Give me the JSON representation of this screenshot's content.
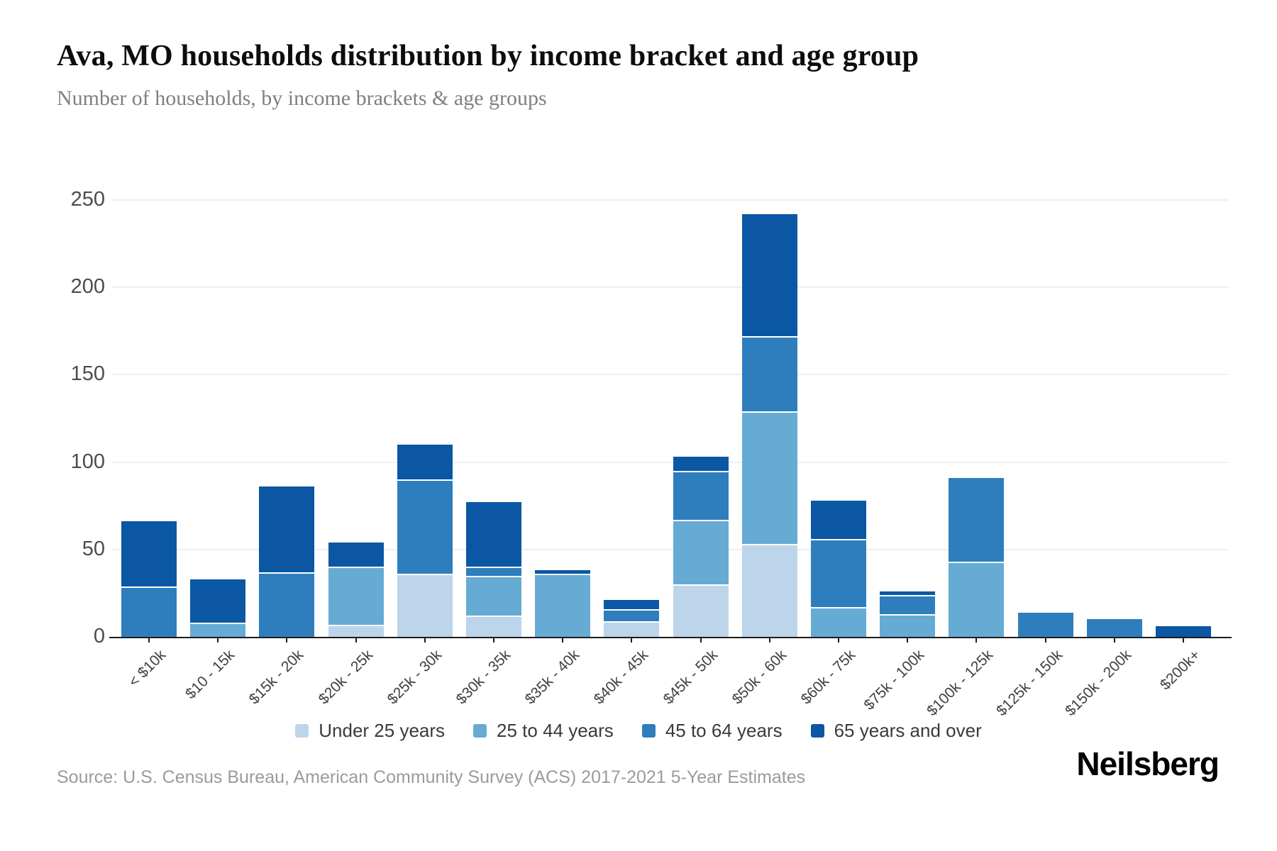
{
  "header": {
    "title": "Ava, MO households distribution by income bracket and age group",
    "subtitle": "Number of households, by income brackets & age groups"
  },
  "chart_data": {
    "type": "bar",
    "stacked": true,
    "title": "Ava, MO households distribution by income bracket and age group",
    "subtitle": "Number of households, by income brackets & age groups",
    "xlabel": "",
    "ylabel": "",
    "ylim": [
      0,
      250
    ],
    "yticks": [
      0,
      50,
      100,
      150,
      200,
      250
    ],
    "grid": true,
    "legend_position": "bottom",
    "categories": [
      "< $10k",
      "$10 - 15k",
      "$15k - 20k",
      "$20k - 25k",
      "$25k - 30k",
      "$30k - 35k",
      "$35k - 40k",
      "$40k - 45k",
      "$45k - 50k",
      "$50k - 60k",
      "$60k - 75k",
      "$75k - 100k",
      "$100k - 125k",
      "$125k - 150k",
      "$150k - 200k",
      "$200k+"
    ],
    "series": [
      {
        "name": "Under 25 years",
        "color": "#bdd5ea",
        "values": [
          0,
          0,
          0,
          7,
          36,
          12,
          0,
          9,
          30,
          53,
          0,
          0,
          0,
          0,
          0,
          0
        ]
      },
      {
        "name": "25 to 44 years",
        "color": "#66abd4",
        "values": [
          0,
          8,
          0,
          33,
          0,
          23,
          36,
          0,
          37,
          76,
          17,
          13,
          43,
          0,
          0,
          0
        ]
      },
      {
        "name": "45 to 64 years",
        "color": "#2e7ebd",
        "values": [
          29,
          0,
          37,
          0,
          54,
          5,
          0,
          7,
          28,
          43,
          39,
          11,
          48,
          14,
          10,
          0
        ]
      },
      {
        "name": "65 years and over",
        "color": "#0b57a4",
        "values": [
          37,
          25,
          49,
          14,
          20,
          37,
          2,
          5,
          8,
          70,
          22,
          2,
          0,
          0,
          0,
          6
        ]
      }
    ]
  },
  "footer": {
    "source": "Source: U.S. Census Bureau, American Community Survey (ACS) 2017-2021 5-Year Estimates",
    "logo": "Neilsberg"
  }
}
